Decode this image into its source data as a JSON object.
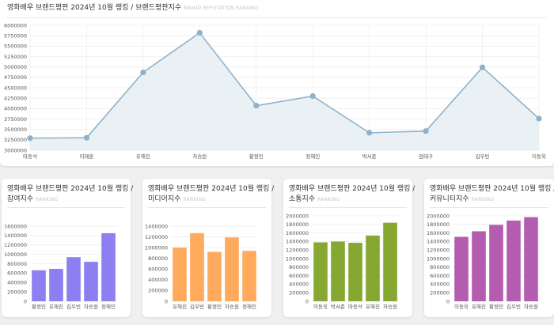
{
  "colors": {
    "main_line": "#8fb2c9",
    "main_fill": "#e6eef3",
    "participation": "#8d7ef2",
    "media": "#ffaa5c",
    "communication": "#86a831",
    "community": "#b45cb0"
  },
  "cards": {
    "main": {
      "title": "영화배우 브랜드평판 2024년 10월 랭킹 / 브랜드평판지수",
      "subtitle": "BRAND REPUTATION RANKING"
    },
    "participation": {
      "title_line1": "영화배우 브랜드평판 2024년 10월 랭킹 /",
      "title_line2": "참여지수",
      "subtitle": "RANKING"
    },
    "media": {
      "title_line1": "영화배우 브랜드평판 2024년 10월 랭킹 /",
      "title_line2": "미디어지수",
      "subtitle": "RANKING"
    },
    "communication": {
      "title_line1": "영화배우 브랜드평판 2024년 10월 랭킹 /",
      "title_line2": "소통지수",
      "subtitle": "RANKING"
    },
    "community": {
      "title_line1": "영화배우 브랜드평판 2024년 10월 랭킹 /",
      "title_line2": "커뮤니티지수",
      "subtitle": "RANKING"
    }
  },
  "chart_data": [
    {
      "id": "brand",
      "type": "area",
      "title": "영화배우 브랜드평판 2024년 10월 랭킹 / 브랜드평판지수",
      "categories": [
        "마동석",
        "이제훈",
        "유해진",
        "차승원",
        "황정민",
        "정해인",
        "박서준",
        "엄태구",
        "김우빈",
        "이동욱"
      ],
      "values": [
        3290000,
        3300000,
        4870000,
        5820000,
        4070000,
        4300000,
        3420000,
        3460000,
        4990000,
        3760000
      ],
      "ylim": [
        3000000,
        6000000
      ],
      "yticks": [
        "3000000",
        "3250000",
        "3500000",
        "3750000",
        "4000000",
        "4250000",
        "4500000",
        "4750000",
        "5000000",
        "5250000",
        "5500000",
        "5750000",
        "6000000"
      ]
    },
    {
      "id": "participation",
      "type": "bar",
      "title": "영화배우 브랜드평판 2024년 10월 랭킹 / 참여지수",
      "categories": [
        "황정민",
        "유해진",
        "김우빈",
        "차승원",
        "정해인"
      ],
      "values": [
        660000,
        690000,
        940000,
        840000,
        1450000
      ],
      "ylim": [
        0,
        1600000
      ],
      "yticks": [
        "0",
        "200000",
        "400000",
        "600000",
        "800000",
        "1000000",
        "1200000",
        "1400000",
        "1600000"
      ]
    },
    {
      "id": "media",
      "type": "bar",
      "title": "영화배우 브랜드평판 2024년 10월 랭킹 / 미디어지수",
      "categories": [
        "유해진",
        "김우빈",
        "황정민",
        "차승원",
        "정해인"
      ],
      "values": [
        1000000,
        1270000,
        920000,
        1190000,
        940000
      ],
      "ylim": [
        0,
        1400000
      ],
      "yticks": [
        "0",
        "200000",
        "400000",
        "600000",
        "800000",
        "1000000",
        "1200000",
        "1400000"
      ]
    },
    {
      "id": "communication",
      "type": "bar",
      "title": "영화배우 브랜드평판 2024년 10월 랭킹 / 소통지수",
      "categories": [
        "이동욱",
        "박서준",
        "마동석",
        "유해진",
        "차승원"
      ],
      "values": [
        1380000,
        1400000,
        1370000,
        1540000,
        1840000
      ],
      "ylim": [
        0,
        2000000
      ],
      "yticks": [
        "0",
        "200000",
        "400000",
        "600000",
        "800000",
        "1000000",
        "1200000",
        "1400000",
        "1600000",
        "1800000",
        "2000000"
      ]
    },
    {
      "id": "community",
      "type": "bar",
      "title": "영화배우 브랜드평판 2024년 10월 랭킹 / 커뮤니티지수",
      "categories": [
        "이동욱",
        "유해진",
        "황정민",
        "김우빈",
        "차승원"
      ],
      "values": [
        1510000,
        1640000,
        1790000,
        1890000,
        1970000
      ],
      "ylim": [
        0,
        2000000
      ],
      "yticks": [
        "0",
        "200000",
        "400000",
        "600000",
        "800000",
        "1000000",
        "1200000",
        "1400000",
        "1600000",
        "1800000",
        "2000000"
      ]
    }
  ]
}
